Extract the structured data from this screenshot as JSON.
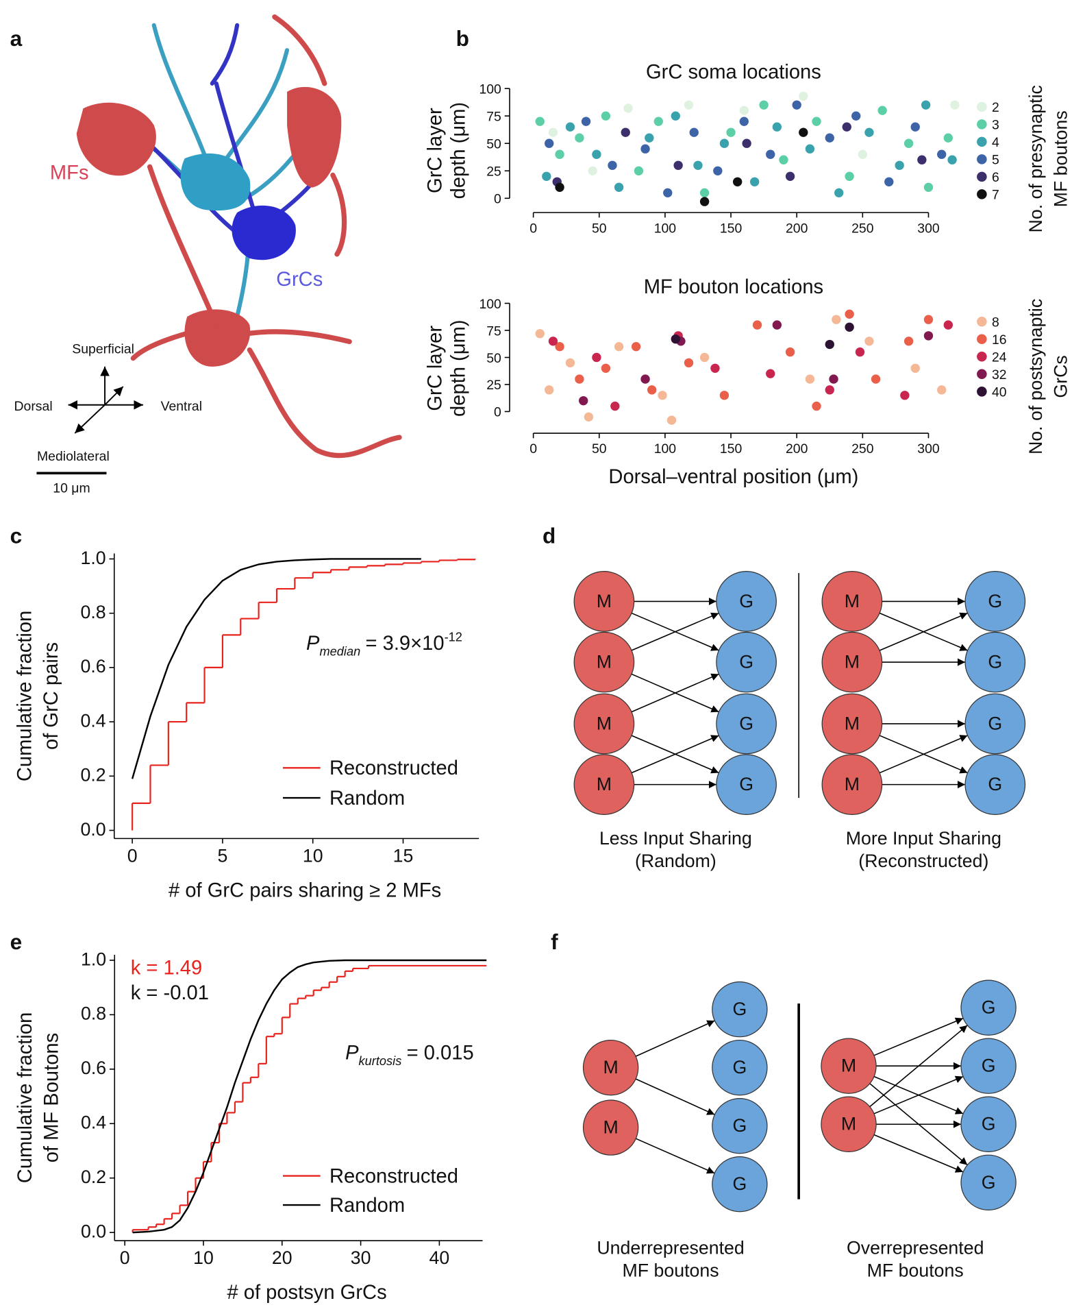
{
  "panel_labels": [
    "a",
    "b",
    "c",
    "d",
    "e",
    "f"
  ],
  "panel_a": {
    "mf_label": "MFs",
    "grc_label": "GrCs",
    "axes": {
      "up": "Superficial",
      "left": "Dorsal",
      "right": "Ventral",
      "depth": "Mediolateral"
    },
    "scale_bar": "10 μm"
  },
  "chart_data": [
    {
      "type": "scatter",
      "title": "GrC soma locations",
      "y_label": [
        "GrC layer",
        "depth (μm)"
      ],
      "legend_title": [
        "No. of presynaptic",
        "MF boutons"
      ],
      "xlim": [
        -18,
        322
      ],
      "ylim": [
        -13,
        100
      ],
      "xticks": [
        0,
        50,
        100,
        150,
        200,
        250,
        300
      ],
      "yticks": [
        0,
        25,
        50,
        75,
        100
      ],
      "series": [
        {
          "name": "2",
          "color": "#dff2e0",
          "x": [
            15,
            72,
            118,
            205,
            320,
            45,
            160,
            250
          ],
          "values": [
            60,
            82,
            85,
            93,
            85,
            25,
            80,
            40
          ]
        },
        {
          "name": "3",
          "color": "#5ccfa6",
          "x": [
            5,
            20,
            35,
            55,
            80,
            95,
            130,
            150,
            175,
            190,
            215,
            240,
            265,
            285,
            300,
            315
          ],
          "values": [
            70,
            40,
            55,
            75,
            25,
            70,
            5,
            60,
            85,
            35,
            70,
            20,
            80,
            50,
            10,
            55
          ]
        },
        {
          "name": "4",
          "color": "#3aa2ad",
          "x": [
            10,
            28,
            48,
            65,
            88,
            108,
            125,
            145,
            168,
            185,
            210,
            232,
            255,
            278,
            298,
            318
          ],
          "values": [
            20,
            65,
            40,
            10,
            55,
            75,
            30,
            50,
            15,
            65,
            45,
            5,
            60,
            30,
            85,
            35
          ]
        },
        {
          "name": "5",
          "color": "#3c64a6",
          "x": [
            12,
            40,
            60,
            85,
            102,
            122,
            140,
            160,
            180,
            200,
            225,
            245,
            270,
            290,
            310
          ],
          "values": [
            50,
            70,
            30,
            45,
            5,
            60,
            25,
            70,
            40,
            85,
            55,
            75,
            15,
            65,
            40
          ]
        },
        {
          "name": "6",
          "color": "#3d2f6b",
          "x": [
            18,
            70,
            110,
            162,
            195,
            238,
            295
          ],
          "values": [
            15,
            60,
            30,
            50,
            20,
            65,
            35
          ]
        },
        {
          "name": "7",
          "color": "#111111",
          "x": [
            20,
            130,
            155,
            205
          ],
          "values": [
            10,
            -3,
            15,
            60
          ]
        }
      ]
    },
    {
      "type": "scatter",
      "title": "MF bouton locations",
      "y_label": [
        "GrC layer",
        "depth (μm)"
      ],
      "x_label": "Dorsal–ventral position (μm)",
      "legend_title": [
        "No. of postsynaptic",
        "GrCs"
      ],
      "xlim": [
        -18,
        322
      ],
      "ylim": [
        -20,
        100
      ],
      "xticks": [
        0,
        50,
        100,
        150,
        200,
        250,
        300
      ],
      "yticks": [
        0,
        25,
        50,
        75,
        100
      ],
      "series": [
        {
          "name": "8",
          "color": "#f5b897",
          "x": [
            5,
            12,
            28,
            42,
            65,
            98,
            105,
            130,
            210,
            230,
            255,
            290,
            310
          ],
          "values": [
            72,
            20,
            45,
            -5,
            60,
            15,
            -8,
            50,
            30,
            85,
            65,
            40,
            20
          ]
        },
        {
          "name": "16",
          "color": "#ea5f4a",
          "x": [
            20,
            35,
            55,
            78,
            90,
            118,
            145,
            170,
            195,
            215,
            240,
            260,
            285,
            300
          ],
          "values": [
            60,
            30,
            40,
            60,
            20,
            45,
            15,
            80,
            55,
            5,
            90,
            30,
            65,
            85
          ]
        },
        {
          "name": "24",
          "color": "#c8254f",
          "x": [
            15,
            48,
            62,
            110,
            138,
            180,
            225,
            248,
            282,
            315
          ],
          "values": [
            65,
            50,
            5,
            70,
            40,
            35,
            20,
            55,
            15,
            80
          ]
        },
        {
          "name": "32",
          "color": "#81184f",
          "x": [
            38,
            85,
            112,
            185,
            228,
            300
          ],
          "values": [
            10,
            30,
            65,
            80,
            30,
            70
          ]
        },
        {
          "name": "40",
          "color": "#2d1233",
          "x": [
            108,
            225,
            240
          ],
          "values": [
            67,
            62,
            78
          ]
        }
      ]
    },
    {
      "type": "line",
      "x_label": "# of GrC pairs sharing ≥ 2 MFs",
      "y_label": [
        "Cumulative fraction",
        "of GrC pairs"
      ],
      "xlim": [
        -1,
        19.2
      ],
      "ylim": [
        -0.03,
        1.02
      ],
      "xticks": [
        0,
        5,
        10,
        15
      ],
      "yticks": [
        {
          "value": 0,
          "label": "0.0"
        },
        0.2,
        0.4,
        0.6,
        0.8,
        {
          "value": 1,
          "label": "1.0"
        }
      ],
      "legend": "lower right",
      "annotations": [
        {
          "parts": [
            {
              "text": "P",
              "style": "italic"
            },
            {
              "text": "median",
              "style": "sub"
            },
            {
              "text": "= 3.9×10"
            },
            {
              "text": "-12",
              "style": "sup"
            }
          ]
        }
      ],
      "series": [
        {
          "name": "Reconstructed",
          "color": "#e8221c",
          "step": true,
          "x": [
            0,
            1,
            2,
            3,
            4,
            5,
            6,
            7,
            8,
            9,
            10,
            11,
            12,
            13,
            14,
            15,
            16,
            17,
            18,
            19
          ],
          "values": [
            0.1,
            0.24,
            0.4,
            0.47,
            0.6,
            0.72,
            0.78,
            0.84,
            0.89,
            0.93,
            0.95,
            0.96,
            0.97,
            0.975,
            0.98,
            0.985,
            0.99,
            0.995,
            0.998,
            1
          ]
        },
        {
          "name": "Random",
          "color": "#000000",
          "x": [
            0,
            1,
            2,
            3,
            4,
            5,
            6,
            7,
            8,
            9,
            10,
            11,
            12,
            13,
            14,
            15,
            16
          ],
          "values": [
            0.19,
            0.42,
            0.61,
            0.75,
            0.85,
            0.92,
            0.96,
            0.98,
            0.99,
            0.995,
            0.998,
            1,
            1,
            1,
            1,
            1,
            1
          ]
        }
      ]
    },
    {
      "type": "line",
      "x_label": "# of postsyn GrCs",
      "y_label": [
        "Cumulative fraction",
        "of MF Boutons"
      ],
      "xlim": [
        -1.3,
        45.5
      ],
      "ylim": [
        -0.03,
        1.02
      ],
      "xticks": [
        0,
        10,
        20,
        30,
        40
      ],
      "yticks": [
        {
          "value": 0,
          "label": "0.0"
        },
        0.2,
        0.4,
        0.6,
        0.8,
        {
          "value": 1,
          "label": "1.0"
        }
      ],
      "legend": "lower right",
      "annotations": [
        {
          "parts": [
            {
              "text": "k = 1.49",
              "color": "#e8221c"
            }
          ]
        },
        {
          "parts": [
            {
              "text": "k = -0.01"
            }
          ]
        },
        {
          "parts": [
            {
              "text": "P",
              "style": "italic"
            },
            {
              "text": "kurtosis",
              "style": "sub"
            },
            {
              "text": "= 0.015"
            }
          ]
        }
      ],
      "series": [
        {
          "name": "Reconstructed",
          "color": "#e8221c",
          "step": true,
          "x": [
            1,
            3,
            4,
            5,
            6,
            7,
            8,
            9,
            10,
            11,
            12,
            13,
            14,
            15,
            16,
            17,
            18,
            19,
            20,
            21,
            22,
            23,
            24,
            25,
            26,
            27,
            28,
            29,
            31,
            46
          ],
          "values": [
            0.01,
            0.02,
            0.03,
            0.05,
            0.07,
            0.1,
            0.15,
            0.2,
            0.26,
            0.33,
            0.4,
            0.44,
            0.48,
            0.55,
            0.57,
            0.62,
            0.72,
            0.73,
            0.79,
            0.84,
            0.86,
            0.87,
            0.89,
            0.9,
            0.92,
            0.94,
            0.96,
            0.97,
            0.98,
            0.98
          ]
        },
        {
          "name": "Random",
          "color": "#000000",
          "x": [
            1,
            3,
            5,
            6,
            7,
            8,
            9,
            10,
            11,
            12,
            13,
            14,
            15,
            16,
            17,
            18,
            19,
            20,
            21,
            22,
            23,
            24,
            26,
            28,
            46
          ],
          "values": [
            0,
            0.003,
            0.01,
            0.02,
            0.045,
            0.09,
            0.15,
            0.22,
            0.3,
            0.38,
            0.46,
            0.55,
            0.63,
            0.71,
            0.78,
            0.84,
            0.89,
            0.93,
            0.955,
            0.975,
            0.985,
            0.992,
            0.998,
            1,
            1
          ]
        }
      ]
    }
  ],
  "diagrams": {
    "node_labels": {
      "mf": "M",
      "grc": "G"
    },
    "d": {
      "captions": [
        [
          "Less Input Sharing",
          "(Random)"
        ],
        [
          "More Input Sharing",
          "(Reconstructed)"
        ]
      ]
    },
    "f": {
      "captions": [
        [
          "Underrepresented",
          "MF boutons"
        ],
        [
          "Overrepresented",
          "MF boutons"
        ]
      ]
    }
  }
}
